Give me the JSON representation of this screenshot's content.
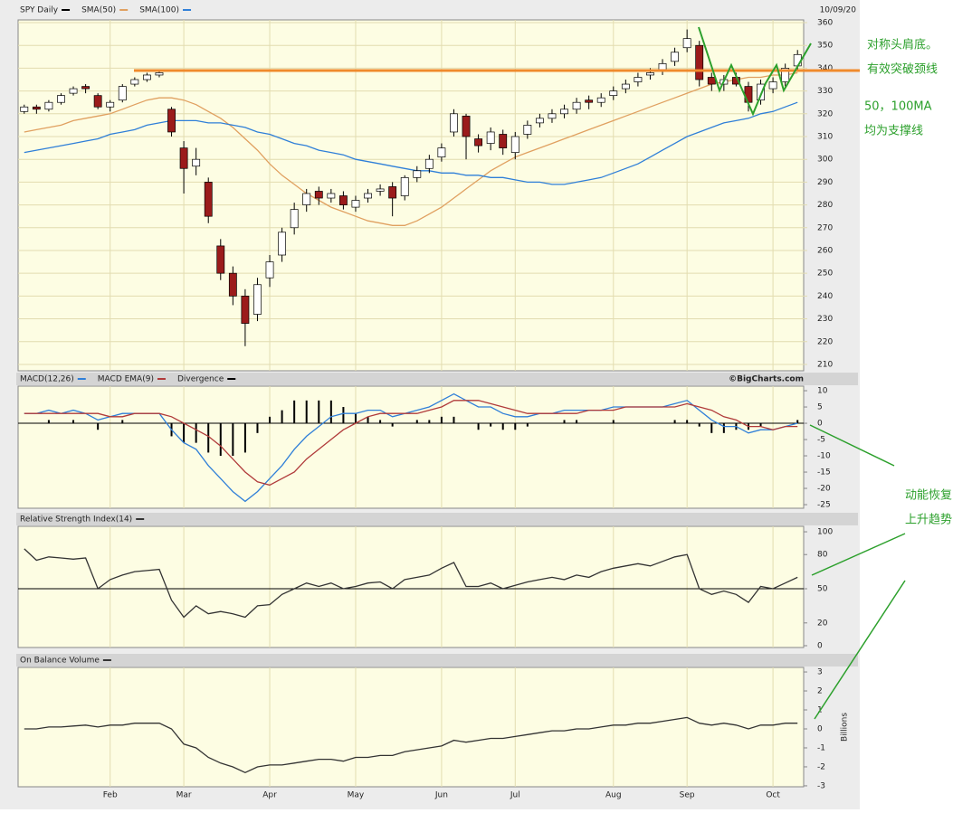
{
  "chart_data": [
    {
      "type": "candlestick",
      "title": "SPY Daily",
      "date": "10/09/20",
      "open": [
        321,
        323,
        322,
        325,
        329,
        332,
        328,
        323,
        326,
        333,
        335,
        337,
        322,
        305,
        297,
        290,
        262,
        250,
        240,
        232,
        248,
        258,
        270,
        280,
        286,
        283,
        284,
        279,
        283,
        286,
        288,
        284,
        292,
        296,
        301,
        312,
        319,
        309,
        307,
        311,
        303,
        311,
        316,
        318,
        320,
        322,
        326,
        325,
        328,
        331,
        334,
        337,
        339,
        343,
        349,
        350,
        336,
        333,
        336,
        332,
        326,
        331,
        334,
        341
      ],
      "high": [
        324,
        324,
        326,
        329,
        332,
        333,
        329,
        326,
        333,
        336,
        338,
        339,
        323,
        308,
        305,
        292,
        265,
        253,
        243,
        248,
        258,
        270,
        281,
        287,
        288,
        287,
        286,
        284,
        287,
        289,
        290,
        293,
        297,
        302,
        307,
        322,
        320,
        311,
        314,
        313,
        312,
        317,
        320,
        322,
        324,
        327,
        328,
        329,
        332,
        335,
        338,
        340,
        344,
        349,
        357,
        352,
        338,
        337,
        338,
        334,
        335,
        336,
        342,
        348
      ],
      "low": [
        320,
        320,
        321,
        324,
        328,
        329,
        322,
        321,
        325,
        332,
        334,
        336,
        310,
        285,
        293,
        272,
        247,
        236,
        218,
        229,
        244,
        255,
        267,
        277,
        280,
        281,
        278,
        277,
        281,
        284,
        275,
        282,
        290,
        294,
        299,
        310,
        300,
        303,
        304,
        302,
        300,
        309,
        314,
        316,
        318,
        320,
        322,
        323,
        326,
        329,
        332,
        335,
        337,
        341,
        347,
        332,
        330,
        330,
        332,
        321,
        324,
        329,
        332,
        339
      ],
      "close": [
        323,
        322,
        325,
        328,
        331,
        331,
        323,
        325,
        332,
        335,
        337,
        338,
        312,
        296,
        300,
        275,
        250,
        240,
        228,
        245,
        255,
        268,
        278,
        285,
        283,
        285,
        280,
        282,
        285,
        287,
        283,
        292,
        295,
        300,
        305,
        320,
        310,
        306,
        312,
        305,
        310,
        315,
        318,
        320,
        322,
        325,
        325,
        327,
        330,
        333,
        336,
        338,
        342,
        347,
        353,
        335,
        333,
        335,
        333,
        325,
        333,
        334,
        340,
        346
      ],
      "up_color": "#ffffff",
      "down_color": "#9b1b1b",
      "price_color": "#000000",
      "series": [
        {
          "name": "SMA(50)",
          "color": "#e0a060",
          "values": [
            312,
            313,
            314,
            315,
            317,
            318,
            319,
            320,
            322,
            324,
            326,
            327,
            327,
            326,
            324,
            321,
            318,
            314,
            309,
            304,
            298,
            293,
            289,
            285,
            282,
            279,
            277,
            275,
            273,
            272,
            271,
            271,
            273,
            276,
            279,
            283,
            287,
            291,
            295,
            298,
            301,
            303,
            305,
            307,
            309,
            311,
            313,
            315,
            317,
            319,
            321,
            323,
            325,
            327,
            329,
            331,
            333,
            334,
            335,
            336,
            336,
            337,
            337,
            338
          ]
        },
        {
          "name": "SMA(100)",
          "color": "#2f7fd8",
          "values": [
            303,
            304,
            305,
            306,
            307,
            308,
            309,
            311,
            312,
            313,
            315,
            316,
            317,
            317,
            317,
            316,
            316,
            315,
            314,
            312,
            311,
            309,
            307,
            306,
            304,
            303,
            302,
            300,
            299,
            298,
            297,
            296,
            295,
            295,
            294,
            294,
            293,
            293,
            292,
            292,
            291,
            290,
            290,
            289,
            289,
            290,
            291,
            292,
            294,
            296,
            298,
            301,
            304,
            307,
            310,
            312,
            314,
            316,
            317,
            318,
            320,
            321,
            323,
            325
          ]
        }
      ],
      "ylim": [
        207.2,
        361.2
      ],
      "yticks": [
        210,
        220,
        230,
        240,
        250,
        260,
        270,
        280,
        290,
        300,
        310,
        320,
        330,
        340,
        350,
        360
      ],
      "grid": true
    },
    {
      "type": "macd",
      "credit": "©BigCharts.com",
      "series": [
        {
          "name": "MACD(12,26)",
          "color": "#2f7fd8",
          "values": [
            3,
            3,
            4,
            3,
            4,
            3,
            1,
            2,
            3,
            3,
            3,
            3,
            -2,
            -6,
            -8,
            -13,
            -17,
            -21,
            -24,
            -21,
            -17,
            -13,
            -8,
            -4,
            -1,
            2,
            3,
            3,
            4,
            4,
            2,
            3,
            4,
            5,
            7,
            9,
            7,
            5,
            5,
            3,
            2,
            2,
            3,
            3,
            4,
            4,
            4,
            4,
            5,
            5,
            5,
            5,
            5,
            6,
            7,
            4,
            1,
            -1,
            -1,
            -3,
            -2,
            -2,
            -1,
            0
          ]
        },
        {
          "name": "MACD EMA(9)",
          "color": "#b03a3a",
          "values": [
            3,
            3,
            3,
            3,
            3,
            3,
            3,
            2,
            2,
            3,
            3,
            3,
            2,
            0,
            -2,
            -4,
            -7,
            -11,
            -15,
            -18,
            -19,
            -17,
            -15,
            -11,
            -8,
            -5,
            -2,
            0,
            2,
            3,
            3,
            3,
            3,
            4,
            5,
            7,
            7,
            7,
            6,
            5,
            4,
            3,
            3,
            3,
            3,
            3,
            4,
            4,
            4,
            5,
            5,
            5,
            5,
            5,
            6,
            5,
            4,
            2,
            1,
            -1,
            -1,
            -2,
            -1,
            -1
          ]
        }
      ],
      "histogram": {
        "name": "Divergence",
        "color": "#000000",
        "values": [
          0,
          0,
          1,
          0,
          1,
          0,
          -2,
          0,
          1,
          0,
          0,
          0,
          -4,
          -6,
          -6,
          -9,
          -10,
          -10,
          -9,
          -3,
          2,
          4,
          7,
          7,
          7,
          7,
          5,
          3,
          2,
          1,
          -1,
          0,
          1,
          1,
          2,
          2,
          0,
          -2,
          -1,
          -2,
          -2,
          -1,
          0,
          0,
          1,
          1,
          0,
          0,
          1,
          0,
          0,
          0,
          0,
          1,
          1,
          -1,
          -3,
          -3,
          -2,
          -2,
          -1,
          0,
          0,
          1
        ]
      },
      "ylim": [
        -26.1,
        11.4
      ],
      "yticks": [
        10,
        5,
        0,
        -5,
        -10,
        -15,
        -20,
        -25
      ]
    },
    {
      "type": "line",
      "series": [
        {
          "name": "Relative Strength Index(14)",
          "color": "#333333",
          "values": [
            85,
            75,
            78,
            77,
            76,
            77,
            50,
            58,
            62,
            65,
            66,
            67,
            40,
            25,
            35,
            28,
            30,
            28,
            25,
            35,
            36,
            45,
            50,
            55,
            52,
            55,
            50,
            52,
            55,
            56,
            50,
            58,
            60,
            62,
            68,
            73,
            52,
            52,
            55,
            50,
            53,
            56,
            58,
            60,
            58,
            62,
            60,
            65,
            68,
            70,
            72,
            70,
            74,
            78,
            80,
            50,
            45,
            48,
            45,
            38,
            52,
            50,
            55,
            60
          ]
        }
      ],
      "reference_line": 50,
      "ylim": [
        -1.6,
        104.8
      ],
      "yticks": [
        0,
        20,
        50,
        80,
        100
      ]
    },
    {
      "type": "line",
      "y_label": "Billions",
      "series": [
        {
          "name": "On Balance Volume",
          "color": "#333333",
          "values": [
            0,
            0,
            0.1,
            0.1,
            0.15,
            0.2,
            0.1,
            0.2,
            0.2,
            0.3,
            0.3,
            0.3,
            0,
            -0.8,
            -1.0,
            -1.5,
            -1.8,
            -2.0,
            -2.3,
            -2.0,
            -1.9,
            -1.9,
            -1.8,
            -1.7,
            -1.6,
            -1.6,
            -1.7,
            -1.5,
            -1.5,
            -1.4,
            -1.4,
            -1.2,
            -1.1,
            -1.0,
            -0.9,
            -0.6,
            -0.7,
            -0.6,
            -0.5,
            -0.5,
            -0.4,
            -0.3,
            -0.2,
            -0.1,
            -0.1,
            0,
            0,
            0.1,
            0.2,
            0.2,
            0.3,
            0.3,
            0.4,
            0.5,
            0.6,
            0.3,
            0.2,
            0.3,
            0.2,
            0,
            0.2,
            0.2,
            0.3,
            0.3
          ]
        }
      ],
      "categories": [
        null,
        null,
        null,
        null,
        null,
        null,
        null,
        "Feb",
        null,
        null,
        null,
        null,
        null,
        "Mar",
        null,
        null,
        null,
        null,
        null,
        null,
        "Apr",
        null,
        null,
        null,
        null,
        null,
        null,
        "May",
        null,
        null,
        null,
        null,
        null,
        null,
        "Jun",
        null,
        null,
        null,
        null,
        null,
        "Jul",
        null,
        null,
        null,
        null,
        null,
        null,
        null,
        "Aug",
        null,
        null,
        null,
        null,
        null,
        "Sep",
        null,
        null,
        null,
        null,
        null,
        null,
        "Oct",
        null,
        null
      ],
      "ylim": [
        -3.05,
        3.24
      ],
      "yticks": [
        -3,
        -2,
        -1,
        0,
        1,
        2,
        3
      ]
    }
  ],
  "annotations": [
    "对称头肩底。",
    "有效突破颈线",
    "50，100MA",
    "均为支撑线",
    "动能恢复",
    "上升趋势"
  ]
}
